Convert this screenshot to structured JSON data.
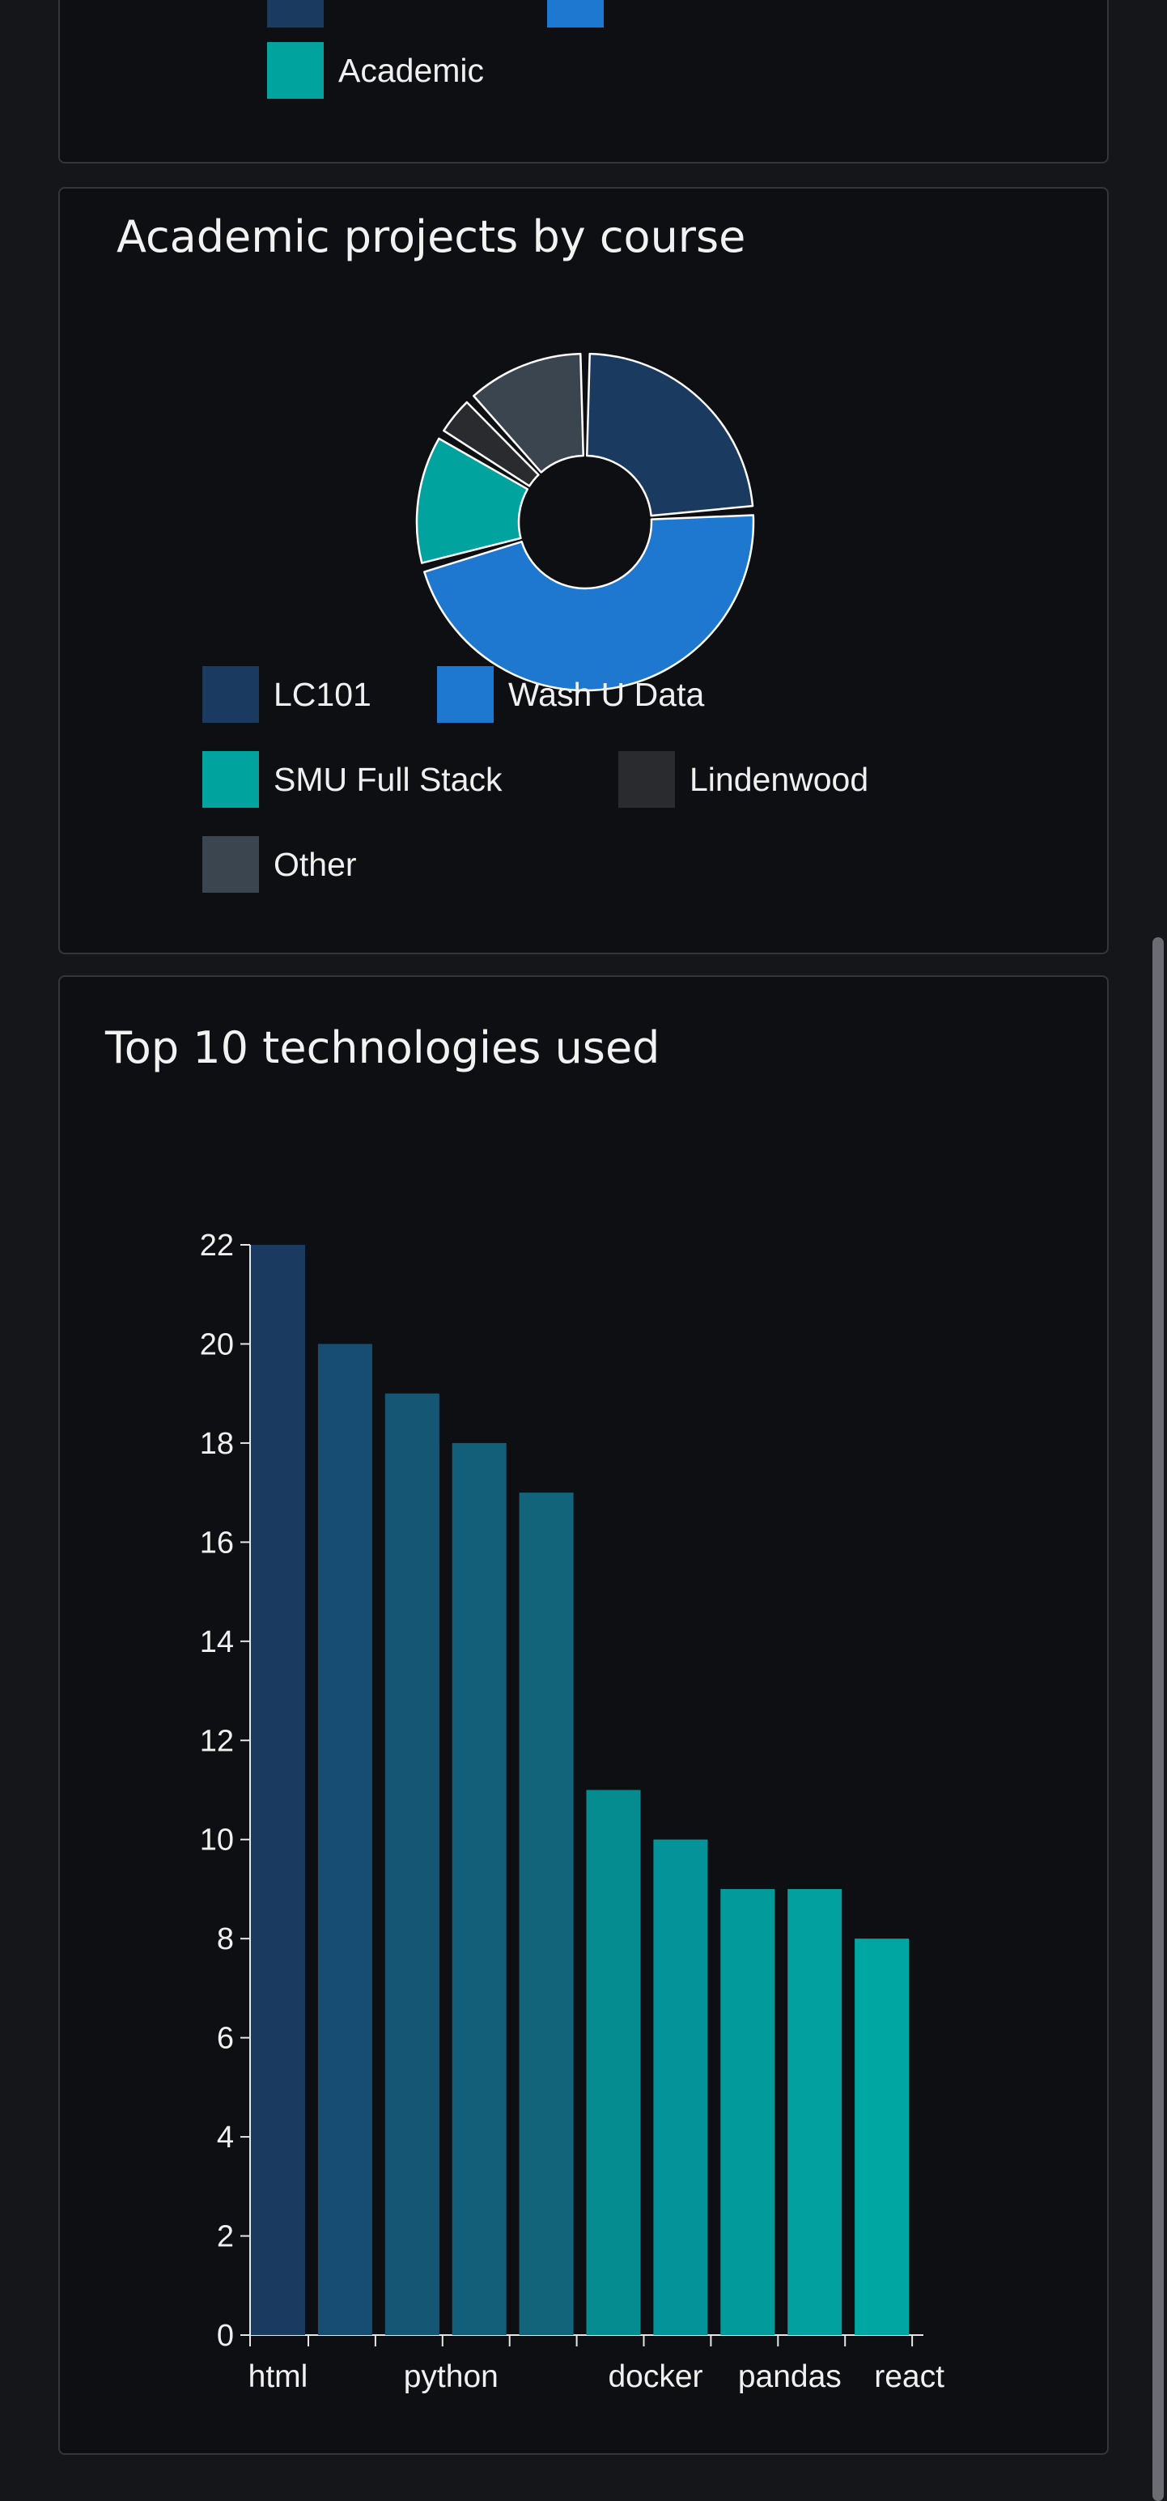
{
  "top_card": {
    "legend": [
      {
        "label": "",
        "color": "#1b3a60"
      },
      {
        "label": "",
        "color": "#1e78d0"
      },
      {
        "label": "Academic",
        "color": "#00a39e"
      }
    ]
  },
  "donut_card": {
    "title": "Academic projects by course"
  },
  "bar_card": {
    "title": "Top 10 technologies used"
  },
  "chart_data": [
    {
      "type": "pie",
      "title": "Academic projects by course",
      "donut": true,
      "categories": [
        "LC101",
        "Wash U Data",
        "SMU Full Stack",
        "Lindenwood",
        "Other"
      ],
      "values": [
        22,
        43,
        12,
        4,
        11
      ],
      "colors": [
        "#1b3a60",
        "#1e78d0",
        "#00a39e",
        "#2a2b2e",
        "#3b4550"
      ],
      "legend_position": "bottom"
    },
    {
      "type": "bar",
      "title": "Top 10 technologies used",
      "bars": [
        22,
        20,
        19,
        18,
        17,
        11,
        10,
        9,
        9,
        8
      ],
      "colors": [
        "#1b3a60",
        "#174d73",
        "#155675",
        "#135e78",
        "#12647a",
        "#058c91",
        "#05939a",
        "#039a9b",
        "#02a09e",
        "#00a7a2"
      ],
      "tick_labels": [
        "html",
        "",
        "python",
        "",
        "",
        "docker",
        "",
        "pandas",
        "",
        "react"
      ],
      "ylim": [
        0,
        22
      ],
      "yticks": [
        0,
        2,
        4,
        6,
        8,
        10,
        12,
        14,
        16,
        18,
        20,
        22
      ],
      "xlabel": "",
      "ylabel": "",
      "grid": false
    }
  ]
}
